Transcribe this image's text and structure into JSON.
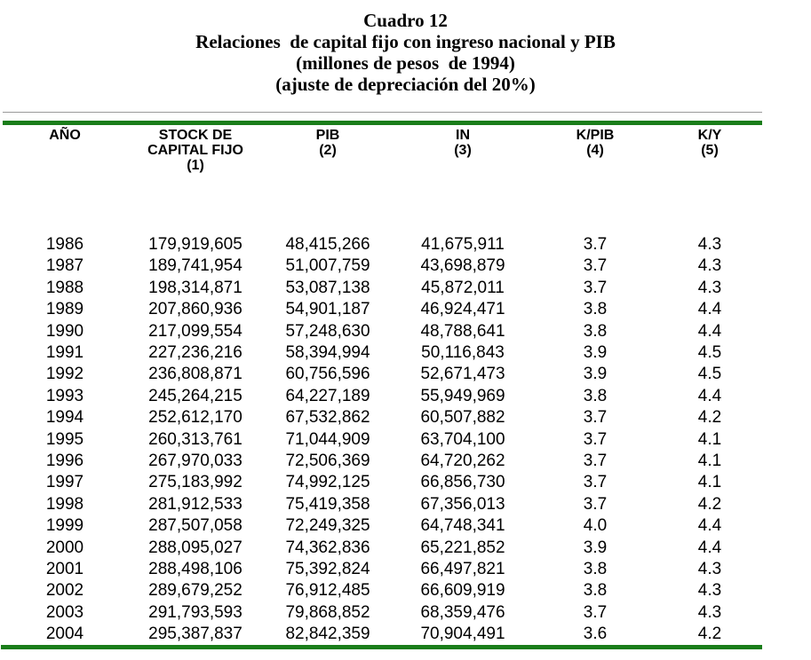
{
  "title": {
    "line1": "Cuadro 12",
    "line2": "Relaciones  de capital fijo con ingreso nacional y PIB",
    "line3": "(millones de pesos  de 1994)",
    "line4": "(ajuste de depreciación del 20%)"
  },
  "colors": {
    "rule_green": "#1a7d1a",
    "rule_gray": "#999999",
    "text": "#000000",
    "background": "#ffffff"
  },
  "table": {
    "header_lines": [
      [
        "AÑO"
      ],
      [
        "STOCK DE",
        "CAPITAL FIJO",
        "(1)"
      ],
      [
        "PIB",
        "(2)"
      ],
      [
        "IN",
        "(3)"
      ],
      [
        "K/PIB",
        "(4)"
      ],
      [
        "K/Y",
        "(5)"
      ]
    ],
    "column_keys": [
      "ano",
      "stock-capital-fijo",
      "pib",
      "in",
      "k-pib",
      "k-y"
    ]
  },
  "chart_data": {
    "type": "table",
    "title": "Cuadro 12 — Relaciones de capital fijo con ingreso nacional y PIB",
    "units": "millones de pesos de 1994",
    "note": "ajuste de depreciación del 20%",
    "columns": [
      "AÑO",
      "STOCK DE CAPITAL FIJO (1)",
      "PIB (2)",
      "IN (3)",
      "K/PIB (4)",
      "K/Y (5)"
    ],
    "rows": [
      [
        "1986",
        "179,919,605",
        "48,415,266",
        "41,675,911",
        "3.7",
        "4.3"
      ],
      [
        "1987",
        "189,741,954",
        "51,007,759",
        "43,698,879",
        "3.7",
        "4.3"
      ],
      [
        "1988",
        "198,314,871",
        "53,087,138",
        "45,872,011",
        "3.7",
        "4.3"
      ],
      [
        "1989",
        "207,860,936",
        "54,901,187",
        "46,924,471",
        "3.8",
        "4.4"
      ],
      [
        "1990",
        "217,099,554",
        "57,248,630",
        "48,788,641",
        "3.8",
        "4.4"
      ],
      [
        "1991",
        "227,236,216",
        "58,394,994",
        "50,116,843",
        "3.9",
        "4.5"
      ],
      [
        "1992",
        "236,808,871",
        "60,756,596",
        "52,671,473",
        "3.9",
        "4.5"
      ],
      [
        "1993",
        "245,264,215",
        "64,227,189",
        "55,949,969",
        "3.8",
        "4.4"
      ],
      [
        "1994",
        "252,612,170",
        "67,532,862",
        "60,507,882",
        "3.7",
        "4.2"
      ],
      [
        "1995",
        "260,313,761",
        "71,044,909",
        "63,704,100",
        "3.7",
        "4.1"
      ],
      [
        "1996",
        "267,970,033",
        "72,506,369",
        "64,720,262",
        "3.7",
        "4.1"
      ],
      [
        "1997",
        "275,183,992",
        "74,992,125",
        "66,856,730",
        "3.7",
        "4.1"
      ],
      [
        "1998",
        "281,912,533",
        "75,419,358",
        "67,356,013",
        "3.7",
        "4.2"
      ],
      [
        "1999",
        "287,507,058",
        "72,249,325",
        "64,748,341",
        "4.0",
        "4.4"
      ],
      [
        "2000",
        "288,095,027",
        "74,362,836",
        "65,221,852",
        "3.9",
        "4.4"
      ],
      [
        "2001",
        "288,498,106",
        "75,392,824",
        "66,497,821",
        "3.8",
        "4.3"
      ],
      [
        "2002",
        "289,679,252",
        "76,912,485",
        "66,609,919",
        "3.8",
        "4.3"
      ],
      [
        "2003",
        "291,793,593",
        "79,868,852",
        "68,359,476",
        "3.7",
        "4.3"
      ],
      [
        "2004",
        "295,387,837",
        "82,842,359",
        "70,904,491",
        "3.6",
        "4.2"
      ]
    ]
  }
}
